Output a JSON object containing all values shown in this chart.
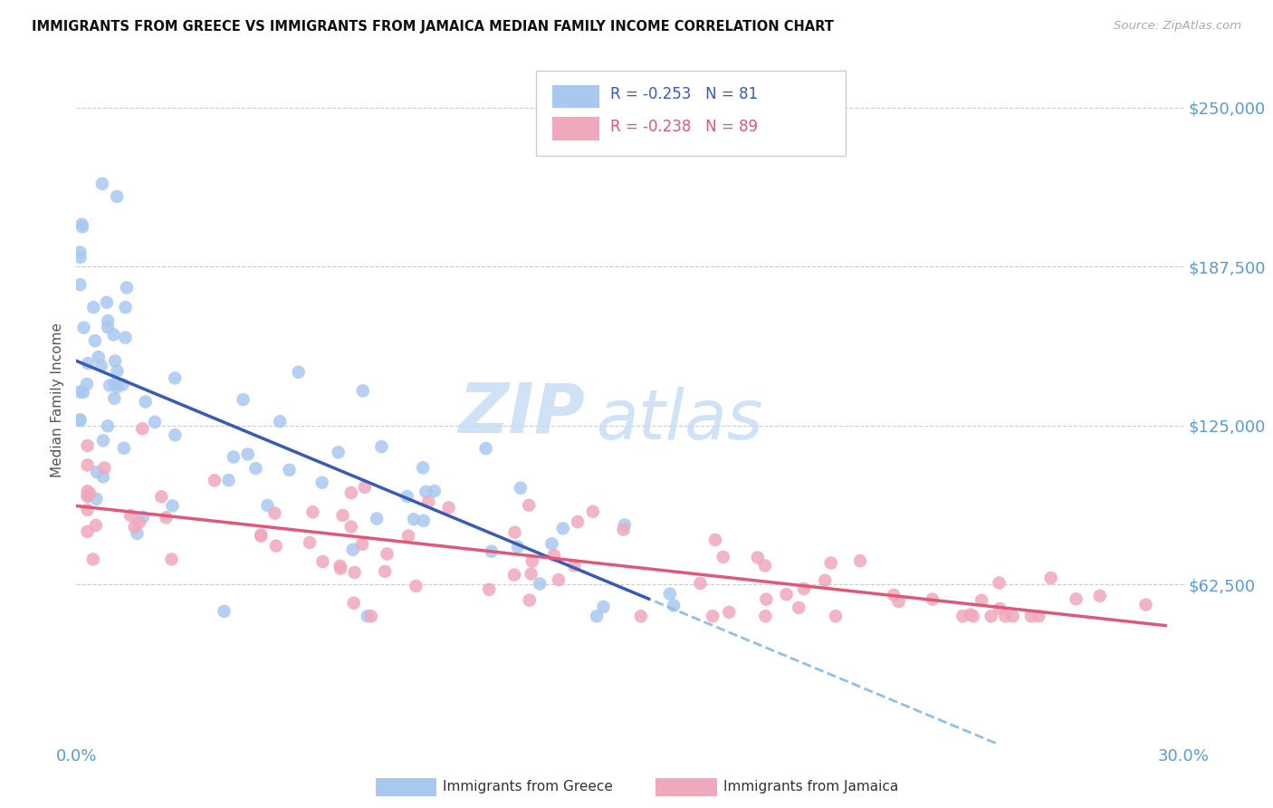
{
  "title": "IMMIGRANTS FROM GREECE VS IMMIGRANTS FROM JAMAICA MEDIAN FAMILY INCOME CORRELATION CHART",
  "source": "Source: ZipAtlas.com",
  "ylabel": "Median Family Income",
  "xlim": [
    0.0,
    0.3
  ],
  "ylim": [
    0,
    270000
  ],
  "yticks": [
    62500,
    125000,
    187500,
    250000
  ],
  "ytick_labels": [
    "$62,500",
    "$125,000",
    "$187,500",
    "$250,000"
  ],
  "greece_color": "#a8c8f0",
  "jamaica_color": "#f0a8bc",
  "greece_R": -0.253,
  "greece_N": 81,
  "jamaica_R": -0.238,
  "jamaica_N": 89,
  "greece_line_color": "#3a5ab8",
  "jamaica_line_color": "#e05878",
  "dashed_line_color": "#90c0e8",
  "tick_color": "#5b9bd5",
  "watermark_zip": "ZIP",
  "watermark_atlas": "atlas",
  "watermark_color": "#c8ddf5",
  "legend_text_color": "#3a5ab8",
  "legend_text_color2": "#e05878"
}
